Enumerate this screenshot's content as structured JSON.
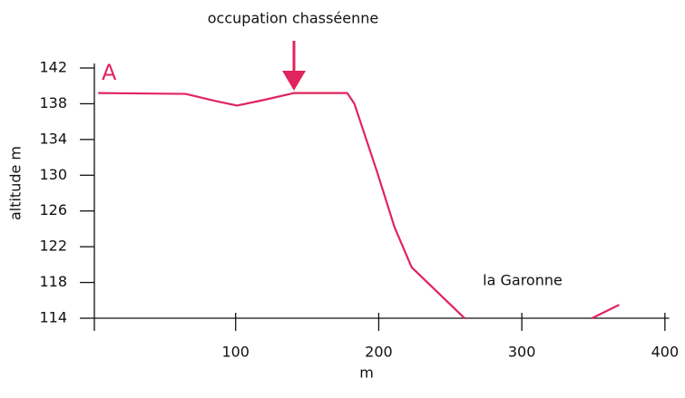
{
  "chart_data": {
    "type": "line",
    "xlabel": "m",
    "ylabel": "altitude m",
    "annotations": [
      "occupation chasséenne",
      "A",
      "la Garonne"
    ],
    "x": [
      4,
      65,
      86,
      101,
      119,
      141,
      178,
      183,
      199,
      211,
      223,
      260,
      300,
      349,
      368
    ],
    "series": [
      {
        "color": "#e0245e",
        "values": [
          139.2,
          139.1,
          138.3,
          137.8,
          138.4,
          139.2,
          139.2,
          138,
          130.3,
          124.2,
          119.7,
          114,
          null,
          114,
          115.5
        ]
      }
    ],
    "xlim": [
      0,
      403
    ],
    "xticks": [
      100,
      200,
      300,
      400
    ],
    "ylim": [
      114,
      142
    ],
    "yticks": [
      114,
      118,
      122,
      126,
      130,
      134,
      138,
      142
    ]
  }
}
